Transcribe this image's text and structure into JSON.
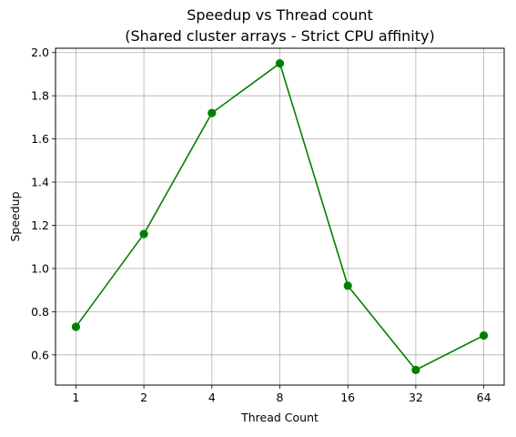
{
  "chart_data": {
    "type": "line",
    "title": "Speedup vs Thread count",
    "subtitle": "(Shared cluster arrays - Strict CPU affinity)",
    "xlabel": "Thread Count",
    "ylabel": "Speedup",
    "categories": [
      "1",
      "2",
      "4",
      "8",
      "16",
      "32",
      "64"
    ],
    "series": [
      {
        "values": [
          0.73,
          1.16,
          1.72,
          1.95,
          0.92,
          0.53,
          0.69
        ],
        "color": "#008000",
        "marker": "circle"
      }
    ],
    "ylim": [
      0.46,
      2.02
    ],
    "yticks": [
      0.6,
      0.8,
      1.0,
      1.2,
      1.4,
      1.6,
      1.8,
      2.0
    ],
    "ytick_labels": [
      "0.6",
      "0.8",
      "1.0",
      "1.2",
      "1.4",
      "1.6",
      "1.8",
      "2.0"
    ],
    "grid": true,
    "legend": false
  }
}
